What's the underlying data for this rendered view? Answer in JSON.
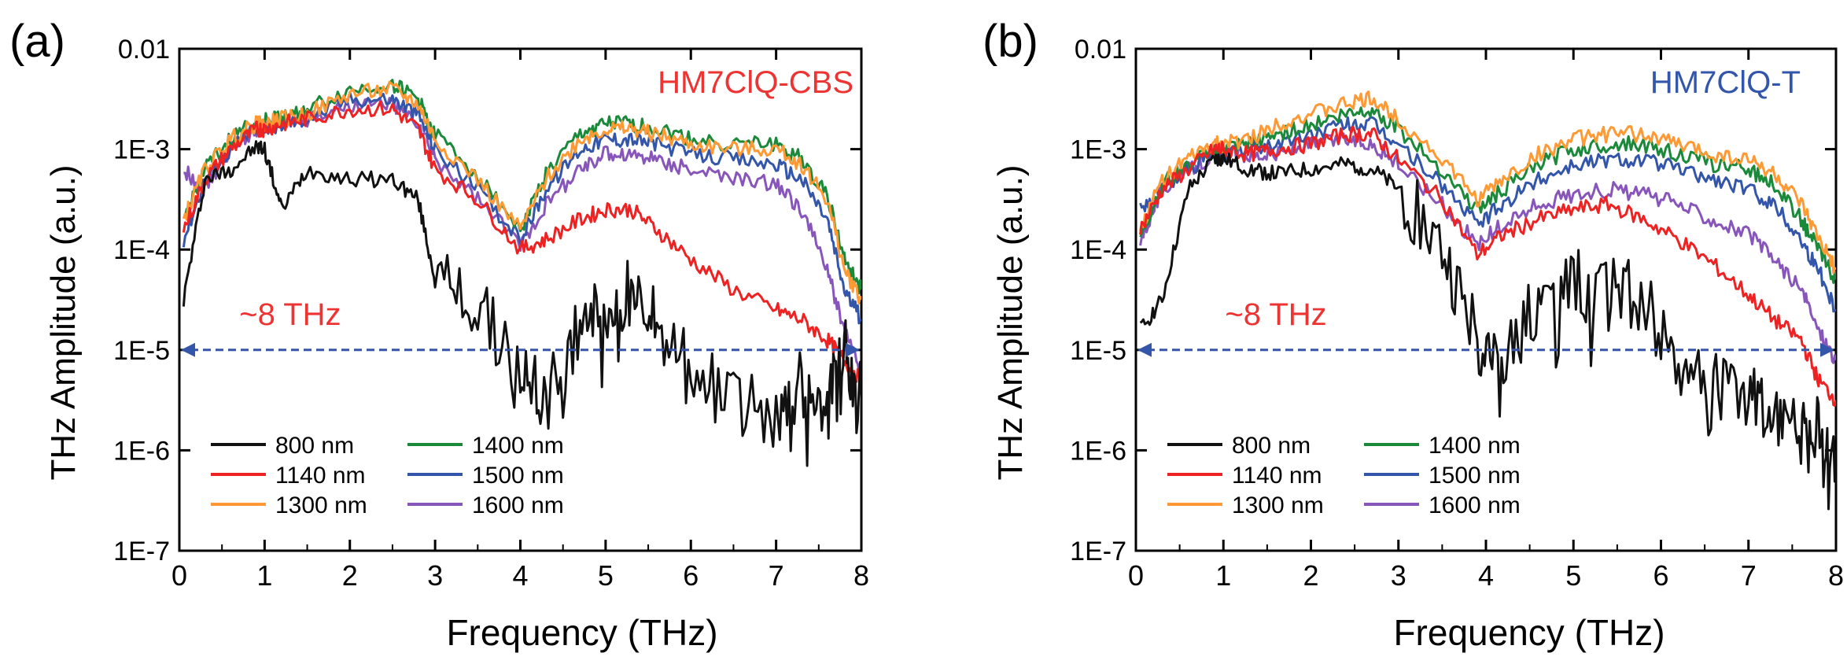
{
  "chart_data": [
    {
      "type": "line",
      "panel_label": "(a)",
      "title": "HM7ClQ-CBS",
      "title_color": "#ee3333",
      "xlabel": "Frequency (THz)",
      "ylabel": "THz Amplitude (a.u.)",
      "xlim": [
        0,
        8
      ],
      "ylim_log10": [
        -7,
        -2
      ],
      "yscale": "log",
      "x_ticks": [
        0,
        1,
        2,
        3,
        4,
        5,
        6,
        7,
        8
      ],
      "y_ticks": [
        {
          "exp": -2,
          "label": "0.01"
        },
        {
          "exp": -3,
          "label": "1E-3"
        },
        {
          "exp": -4,
          "label": "1E-4"
        },
        {
          "exp": -5,
          "label": "1E-5"
        },
        {
          "exp": -6,
          "label": "1E-6"
        },
        {
          "exp": -7,
          "label": "1E-7"
        }
      ],
      "annotation": {
        "text": "~8 THz",
        "color": "#ee3333",
        "x": 1.3,
        "y_exp": -4.75
      },
      "threshold_line": {
        "x_from": 0,
        "x_to": 8,
        "y_exp": -5,
        "color": "#3355aa"
      },
      "legend": {
        "position": "bottom-left",
        "entries": [
          {
            "name": "800 nm",
            "color": "#111111"
          },
          {
            "name": "1400 nm",
            "color": "#1a8a3a"
          },
          {
            "name": "1140 nm",
            "color": "#ee2222"
          },
          {
            "name": "1500 nm",
            "color": "#3355aa"
          },
          {
            "name": "1300 nm",
            "color": "#ff9933"
          },
          {
            "name": "1600 nm",
            "color": "#8855bb"
          }
        ]
      },
      "x": [
        0.05,
        0.3,
        0.6,
        0.9,
        1.0,
        1.2,
        1.5,
        2.0,
        2.5,
        2.8,
        3.0,
        3.5,
        4.0,
        4.3,
        4.7,
        5.0,
        5.3,
        5.6,
        6.0,
        6.5,
        7.0,
        7.3,
        7.6,
        7.8,
        8.0
      ],
      "series": [
        {
          "name": "800 nm",
          "color": "#111111",
          "values_log10": [
            -4.5,
            -3.3,
            -3.2,
            -2.98,
            -3.0,
            -3.6,
            -3.2,
            -3.3,
            -3.3,
            -3.5,
            -4.3,
            -4.6,
            -5.2,
            -5.5,
            -4.8,
            -4.6,
            -4.4,
            -4.6,
            -5.2,
            -5.5,
            -5.7,
            -5.3,
            -5.6,
            -5.0,
            -5.5
          ]
        },
        {
          "name": "1140 nm",
          "color": "#ee2222",
          "values_log10": [
            -3.8,
            -3.3,
            -3.0,
            -2.8,
            -2.8,
            -2.75,
            -2.7,
            -2.6,
            -2.6,
            -2.8,
            -3.2,
            -3.5,
            -4.0,
            -3.9,
            -3.7,
            -3.6,
            -3.6,
            -3.8,
            -4.1,
            -4.4,
            -4.6,
            -4.7,
            -4.9,
            -5.1,
            -5.3
          ]
        },
        {
          "name": "1300 nm",
          "color": "#ff9933",
          "values_log10": [
            -3.7,
            -3.2,
            -2.9,
            -2.75,
            -2.75,
            -2.7,
            -2.65,
            -2.45,
            -2.4,
            -2.55,
            -2.9,
            -3.3,
            -3.8,
            -3.3,
            -2.9,
            -2.8,
            -2.8,
            -2.85,
            -2.95,
            -3.0,
            -3.0,
            -3.15,
            -3.5,
            -4.2,
            -4.5
          ]
        },
        {
          "name": "1400 nm",
          "color": "#1a8a3a",
          "values_log10": [
            -3.7,
            -3.2,
            -2.9,
            -2.72,
            -2.72,
            -2.68,
            -2.6,
            -2.42,
            -2.35,
            -2.5,
            -2.85,
            -3.25,
            -3.8,
            -3.25,
            -2.85,
            -2.75,
            -2.75,
            -2.8,
            -2.9,
            -2.95,
            -2.95,
            -3.1,
            -3.45,
            -4.1,
            -4.4
          ]
        },
        {
          "name": "1500 nm",
          "color": "#3355aa",
          "values_log10": [
            -3.9,
            -3.3,
            -3.0,
            -2.78,
            -2.78,
            -2.75,
            -2.7,
            -2.5,
            -2.5,
            -2.65,
            -3.0,
            -3.4,
            -3.9,
            -3.4,
            -3.0,
            -2.9,
            -2.9,
            -2.95,
            -3.05,
            -3.1,
            -3.15,
            -3.3,
            -3.7,
            -4.4,
            -4.7
          ]
        },
        {
          "name": "1600 nm",
          "color": "#8855bb",
          "values_log10": [
            -3.2,
            -3.4,
            -3.0,
            -2.8,
            -2.8,
            -2.7,
            -2.7,
            -2.55,
            -2.55,
            -2.75,
            -3.1,
            -3.5,
            -3.95,
            -3.55,
            -3.2,
            -3.05,
            -3.05,
            -3.1,
            -3.2,
            -3.3,
            -3.35,
            -3.6,
            -4.2,
            -4.8,
            -5.2
          ]
        }
      ]
    },
    {
      "type": "line",
      "panel_label": "(b)",
      "title": "HM7ClQ-T",
      "title_color": "#3355aa",
      "xlabel": "Frequency (THz)",
      "ylabel": "THz Amplitude (a.u.)",
      "xlim": [
        0,
        8
      ],
      "ylim_log10": [
        -7,
        -2
      ],
      "yscale": "log",
      "x_ticks": [
        0,
        1,
        2,
        3,
        4,
        5,
        6,
        7,
        8
      ],
      "y_ticks": [
        {
          "exp": -2,
          "label": "0.01"
        },
        {
          "exp": -3,
          "label": "1E-3"
        },
        {
          "exp": -4,
          "label": "1E-4"
        },
        {
          "exp": -5,
          "label": "1E-5"
        },
        {
          "exp": -6,
          "label": "1E-6"
        },
        {
          "exp": -7,
          "label": "1E-7"
        }
      ],
      "annotation": {
        "text": "~8 THz",
        "color": "#ee3333",
        "x": 1.6,
        "y_exp": -4.75
      },
      "threshold_line": {
        "x_from": 0,
        "x_to": 8,
        "y_exp": -5,
        "color": "#3355aa"
      },
      "legend": {
        "position": "bottom-left",
        "entries": [
          {
            "name": "800 nm",
            "color": "#111111"
          },
          {
            "name": "1400 nm",
            "color": "#1a8a3a"
          },
          {
            "name": "1140 nm",
            "color": "#ee2222"
          },
          {
            "name": "1500 nm",
            "color": "#3355aa"
          },
          {
            "name": "1300 nm",
            "color": "#ff9933"
          },
          {
            "name": "1600 nm",
            "color": "#8855bb"
          }
        ]
      },
      "x": [
        0.05,
        0.3,
        0.6,
        0.9,
        1.0,
        1.3,
        1.6,
        2.0,
        2.4,
        2.7,
        3.0,
        3.5,
        3.9,
        4.2,
        4.6,
        5.0,
        5.4,
        5.8,
        6.2,
        6.6,
        7.0,
        7.3,
        7.6,
        7.8,
        8.0
      ],
      "series": [
        {
          "name": "800 nm",
          "color": "#111111",
          "values_log10": [
            -4.8,
            -4.5,
            -3.4,
            -3.1,
            -3.1,
            -3.2,
            -3.25,
            -3.2,
            -3.15,
            -3.2,
            -3.4,
            -4.0,
            -4.9,
            -5.2,
            -4.5,
            -4.3,
            -4.35,
            -4.5,
            -5.1,
            -5.3,
            -5.5,
            -5.6,
            -5.6,
            -5.8,
            -6.0
          ]
        },
        {
          "name": "1140 nm",
          "color": "#ee2222",
          "values_log10": [
            -3.8,
            -3.4,
            -3.2,
            -3.0,
            -3.0,
            -3.05,
            -3.0,
            -2.95,
            -2.85,
            -2.85,
            -3.1,
            -3.5,
            -4.05,
            -3.85,
            -3.7,
            -3.6,
            -3.55,
            -3.7,
            -3.9,
            -4.15,
            -4.45,
            -4.7,
            -4.9,
            -5.3,
            -5.5
          ]
        },
        {
          "name": "1300 nm",
          "color": "#ff9933",
          "values_log10": [
            -3.8,
            -3.3,
            -3.1,
            -2.95,
            -2.95,
            -2.9,
            -2.75,
            -2.65,
            -2.55,
            -2.5,
            -2.7,
            -3.1,
            -3.5,
            -3.3,
            -3.05,
            -2.9,
            -2.85,
            -2.85,
            -2.95,
            -3.05,
            -3.1,
            -3.25,
            -3.55,
            -3.9,
            -4.2
          ]
        },
        {
          "name": "1400 nm",
          "color": "#1a8a3a",
          "values_log10": [
            -3.9,
            -3.35,
            -3.15,
            -3.0,
            -3.0,
            -2.95,
            -2.85,
            -2.75,
            -2.65,
            -2.6,
            -2.8,
            -3.2,
            -3.6,
            -3.4,
            -3.15,
            -3.0,
            -2.95,
            -2.95,
            -3.05,
            -3.15,
            -3.2,
            -3.35,
            -3.7,
            -4.0,
            -4.3
          ]
        },
        {
          "name": "1500 nm",
          "color": "#3355aa",
          "values_log10": [
            -3.6,
            -3.4,
            -3.2,
            -3.05,
            -3.05,
            -3.0,
            -2.95,
            -2.85,
            -2.75,
            -2.75,
            -2.95,
            -3.35,
            -3.75,
            -3.55,
            -3.3,
            -3.15,
            -3.1,
            -3.1,
            -3.2,
            -3.3,
            -3.4,
            -3.55,
            -3.9,
            -4.2,
            -4.6
          ]
        },
        {
          "name": "1600 nm",
          "color": "#8855bb",
          "values_log10": [
            -3.9,
            -3.4,
            -3.2,
            -3.05,
            -3.05,
            -3.05,
            -3.05,
            -2.95,
            -2.9,
            -2.95,
            -3.15,
            -3.55,
            -3.95,
            -3.75,
            -3.55,
            -3.45,
            -3.4,
            -3.45,
            -3.55,
            -3.7,
            -3.85,
            -4.1,
            -4.4,
            -4.8,
            -5.1
          ]
        }
      ]
    }
  ]
}
